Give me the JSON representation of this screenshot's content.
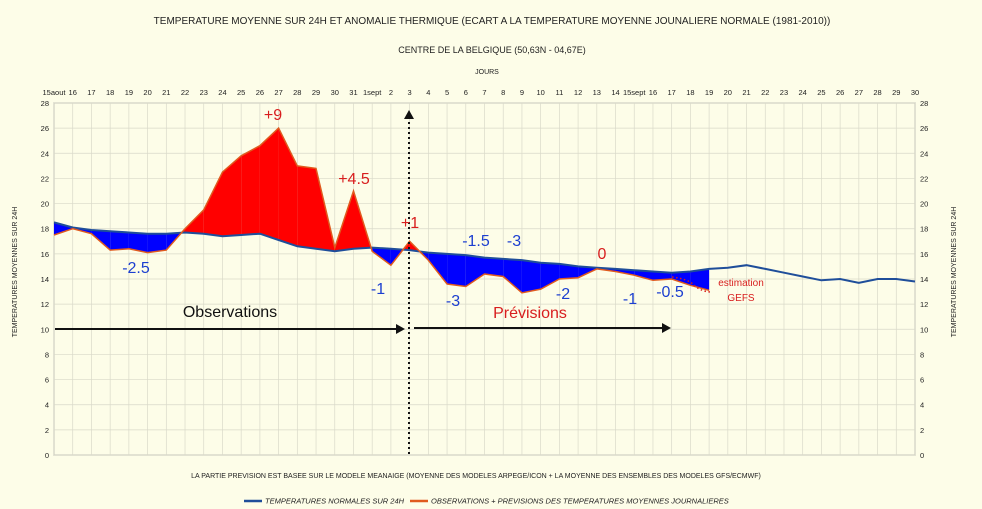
{
  "title": "TEMPERATURE MOYENNE SUR 24H ET  ANOMALIE THERMIQUE (ECART A LA TEMPERATURE MOYENNE JOUNALIERE NORMALE (1981-2010))",
  "subtitle": "CENTRE DE LA BELGIQUE (50,63N - 04,67E)",
  "xlabel": "JOURS",
  "ylabel_left": "TEMPERATURES MOYENNES SUR 24H",
  "ylabel_right": "TEMPERATURES MOYENNES SUR 24H",
  "footnote": "LA PARTIE PREVISION EST BASEE SUR LE MODELE MEANAIGE (MOYENNE DES MODELES ARPEGE/ICON + LA MOYENNE DES ENSEMBLES DES MODELES GFS/ECMWF)",
  "legend": {
    "normal_label": "TEMPERATURES NORMALES SUR 24H",
    "observed_label": "OBSERVATIONS + PREVISIONS DES TEMPERATURES MOYENNES JOURNALIERES"
  },
  "annotations": {
    "observations": "Observations",
    "previsions": "Prévisions",
    "estimation_line1": "estimation",
    "estimation_line2": "GEFS",
    "anomalies": [
      "-2.5",
      "+9",
      "+4.5",
      "-1",
      "+1",
      "-1.5",
      "-3",
      "-3",
      "-2",
      "0",
      "-1",
      "-0.5"
    ]
  },
  "colors": {
    "normal": "#1f4e9a",
    "observed": "#e05a1e",
    "warm_fill": "#ff0000",
    "cold_fill": "#0000ff",
    "background": "#fdfde8",
    "anomaly_warm_text": "#d81e1e",
    "anomaly_cold_text": "#1c3fd0"
  },
  "chart_data": {
    "type": "area",
    "x_tick_labels": [
      "15aout",
      "16",
      "17",
      "18",
      "19",
      "20",
      "21",
      "22",
      "23",
      "24",
      "25",
      "26",
      "27",
      "28",
      "29",
      "30",
      "31",
      "1sept",
      "2",
      "3",
      "4",
      "5",
      "6",
      "7",
      "8",
      "9",
      "10",
      "11",
      "12",
      "13",
      "14",
      "15sept",
      "16",
      "17",
      "18",
      "19",
      "20",
      "21",
      "22",
      "23",
      "24",
      "25",
      "26",
      "27",
      "28",
      "29",
      "30"
    ],
    "ylim": [
      0,
      28
    ],
    "y_ticks": [
      0,
      2,
      4,
      6,
      8,
      10,
      12,
      14,
      16,
      18,
      20,
      22,
      24,
      26,
      28
    ],
    "grid": true,
    "legend_position": "bottom",
    "series": [
      {
        "name": "TEMPERATURES NORMALES SUR 24H",
        "values": [
          18.5,
          18.1,
          17.9,
          17.8,
          17.7,
          17.6,
          17.6,
          17.7,
          17.6,
          17.4,
          17.5,
          17.6,
          17.1,
          16.6,
          16.4,
          16.2,
          16.4,
          16.5,
          16.4,
          16.3,
          16.1,
          16.0,
          15.9,
          15.7,
          15.6,
          15.5,
          15.3,
          15.2,
          15.0,
          14.9,
          14.8,
          14.7,
          14.6,
          14.5,
          14.6,
          14.8,
          14.9,
          15.1,
          14.8,
          14.5,
          14.2,
          13.9,
          14.0,
          13.7,
          14.0,
          14.0,
          13.8
        ]
      },
      {
        "name": "OBSERVATIONS + PREVISIONS DES TEMPERATURES MOYENNES JOURNALIERES",
        "values": [
          17.5,
          18.0,
          17.6,
          16.3,
          16.4,
          16.1,
          16.3,
          18.0,
          19.5,
          22.5,
          23.8,
          24.6,
          26.0,
          23.0,
          22.8,
          16.5,
          21.0,
          16.2,
          15.1,
          17.0,
          15.5,
          13.6,
          13.4,
          14.4,
          14.2,
          12.9,
          13.2,
          14.0,
          14.1,
          14.8,
          14.6,
          14.3,
          13.9,
          14.0,
          13.5,
          13.1
        ]
      }
    ]
  }
}
